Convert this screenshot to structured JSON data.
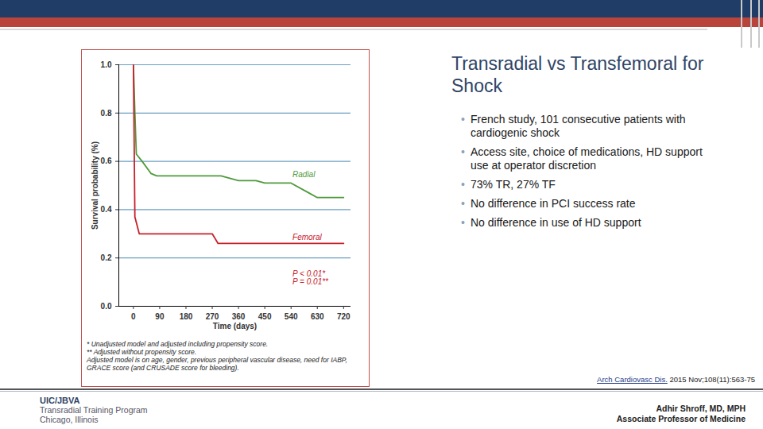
{
  "slide": {
    "title": "Transradial vs Transfemoral for Shock",
    "bullets": [
      "French study, 101 consecutive patients with cardiogenic shock",
      "Access site, choice of medications, HD support use at operator discretion",
      "73% TR, 27% TF",
      "No difference in PCI success rate",
      "No difference in use of HD support"
    ],
    "citation": {
      "journal": "Arch Cardiovasc Dis.",
      "ref": "2015 Nov;108(11):563-75"
    },
    "logo": [
      "UIC/JBVA",
      "Transradial Training Program",
      "Chicago, Illinois"
    ],
    "author": [
      "Adhir Shroff, MD, MPH",
      "Associate Professor of Medicine"
    ]
  },
  "chart_data": {
    "type": "line",
    "x_label": "Time (days)",
    "y_label": "Survival probability (%)",
    "xlim": [
      -50,
      745
    ],
    "ylim": [
      0,
      1
    ],
    "xticks": [
      0,
      90,
      180,
      270,
      360,
      450,
      540,
      630,
      720
    ],
    "yticks": [
      {
        "value": 0,
        "label": "0.0"
      },
      {
        "value": 0.2,
        "label": "0.2"
      },
      {
        "value": 0.4,
        "label": "0.4"
      },
      {
        "value": 0.6,
        "label": "0.6"
      },
      {
        "value": 0.8,
        "label": "0.8"
      },
      {
        "value": 1,
        "label": "1.0"
      }
    ],
    "grid": true,
    "series": [
      {
        "name": "Radial",
        "color": "#4e9a3c",
        "x": [
          0,
          5,
          10,
          30,
          60,
          80,
          300,
          330,
          360,
          420,
          450,
          540,
          600,
          630,
          720
        ],
        "values": [
          1.0,
          0.8,
          0.63,
          0.6,
          0.55,
          0.54,
          0.54,
          0.53,
          0.52,
          0.52,
          0.51,
          0.51,
          0.47,
          0.45,
          0.45
        ]
      },
      {
        "name": "Femoral",
        "color": "#c8202a",
        "x": [
          0,
          5,
          20,
          270,
          290,
          720
        ],
        "values": [
          1.0,
          0.37,
          0.3,
          0.3,
          0.26,
          0.26
        ]
      }
    ],
    "annotations": [
      {
        "text": "Radial",
        "x": 545,
        "y": 0.545,
        "color": "#4e9a3c"
      },
      {
        "text": "Femoral",
        "x": 545,
        "y": 0.285,
        "color": "#c8202a"
      },
      {
        "text": "P < 0.01*",
        "x": 545,
        "y": 0.135,
        "color": "#c8202a"
      },
      {
        "text": "P = 0.01**",
        "x": 545,
        "y": 0.1,
        "color": "#c8202a"
      }
    ],
    "footnotes": [
      "* Unadjusted model and adjusted including propensity score.",
      "** Adjusted without propensity score.",
      "Adjusted model is on age, gender, previous peripheral vascular disease, need for IABP, GRACE score (and CRUSADE score for bleeding)."
    ]
  }
}
